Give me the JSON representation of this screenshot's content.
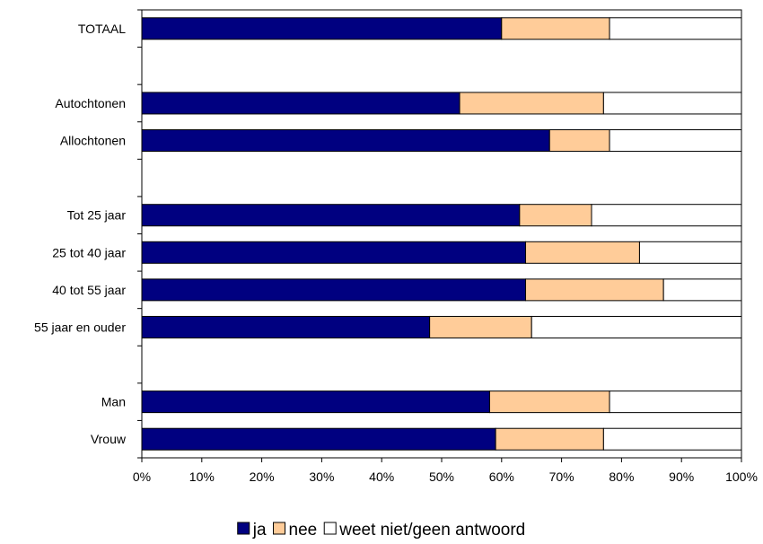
{
  "chart_data": {
    "type": "bar",
    "orientation": "horizontal",
    "stacked": true,
    "categories": [
      "TOTAAL",
      "",
      "Autochtonen",
      "Allochtonen",
      "",
      "Tot 25 jaar",
      "25 tot 40 jaar",
      "40 tot 55 jaar",
      "55 jaar en ouder",
      "",
      "Man",
      "Vrouw"
    ],
    "series": [
      {
        "name": "ja",
        "color": "#000080",
        "values": [
          60,
          null,
          53,
          68,
          null,
          63,
          64,
          64,
          48,
          null,
          58,
          59
        ]
      },
      {
        "name": "nee",
        "color": "#FFCC99",
        "values": [
          18,
          null,
          24,
          10,
          null,
          12,
          19,
          23,
          17,
          null,
          20,
          18
        ]
      },
      {
        "name": "weet niet/geen antwoord",
        "color": "#FFFFFF",
        "values": [
          22,
          null,
          23,
          22,
          null,
          25,
          17,
          13,
          35,
          null,
          22,
          23
        ]
      }
    ],
    "xlim": [
      0,
      100
    ],
    "x_ticks": [
      "0%",
      "10%",
      "20%",
      "30%",
      "40%",
      "50%",
      "60%",
      "70%",
      "80%",
      "90%",
      "100%"
    ],
    "title": "",
    "xlabel": "",
    "ylabel": "",
    "grid": false,
    "legend_position": "bottom"
  }
}
